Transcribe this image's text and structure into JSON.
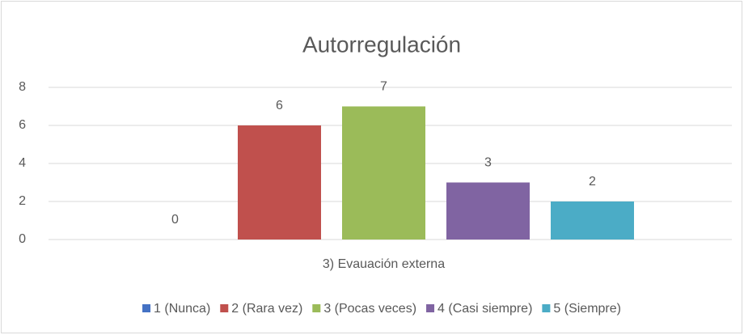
{
  "chart_data": {
    "type": "bar",
    "title": "Autorregulación",
    "categories": [
      "3) Evauación externa"
    ],
    "series": [
      {
        "name": "1 (Nunca)",
        "color": "#4472c4",
        "values": [
          0
        ]
      },
      {
        "name": "2 (Rara vez)",
        "color": "#c0504d",
        "values": [
          6
        ]
      },
      {
        "name": "3 (Pocas veces)",
        "color": "#9bbb59",
        "values": [
          7
        ]
      },
      {
        "name": "4 (Casi siempre)",
        "color": "#8064a2",
        "values": [
          3
        ]
      },
      {
        "name": "5 (Siempre)",
        "color": "#4bacc6",
        "values": [
          2
        ]
      }
    ],
    "ylim": [
      0,
      8
    ],
    "yticks": [
      0,
      2,
      4,
      6,
      8
    ],
    "grid": true,
    "legend": "bottom"
  }
}
